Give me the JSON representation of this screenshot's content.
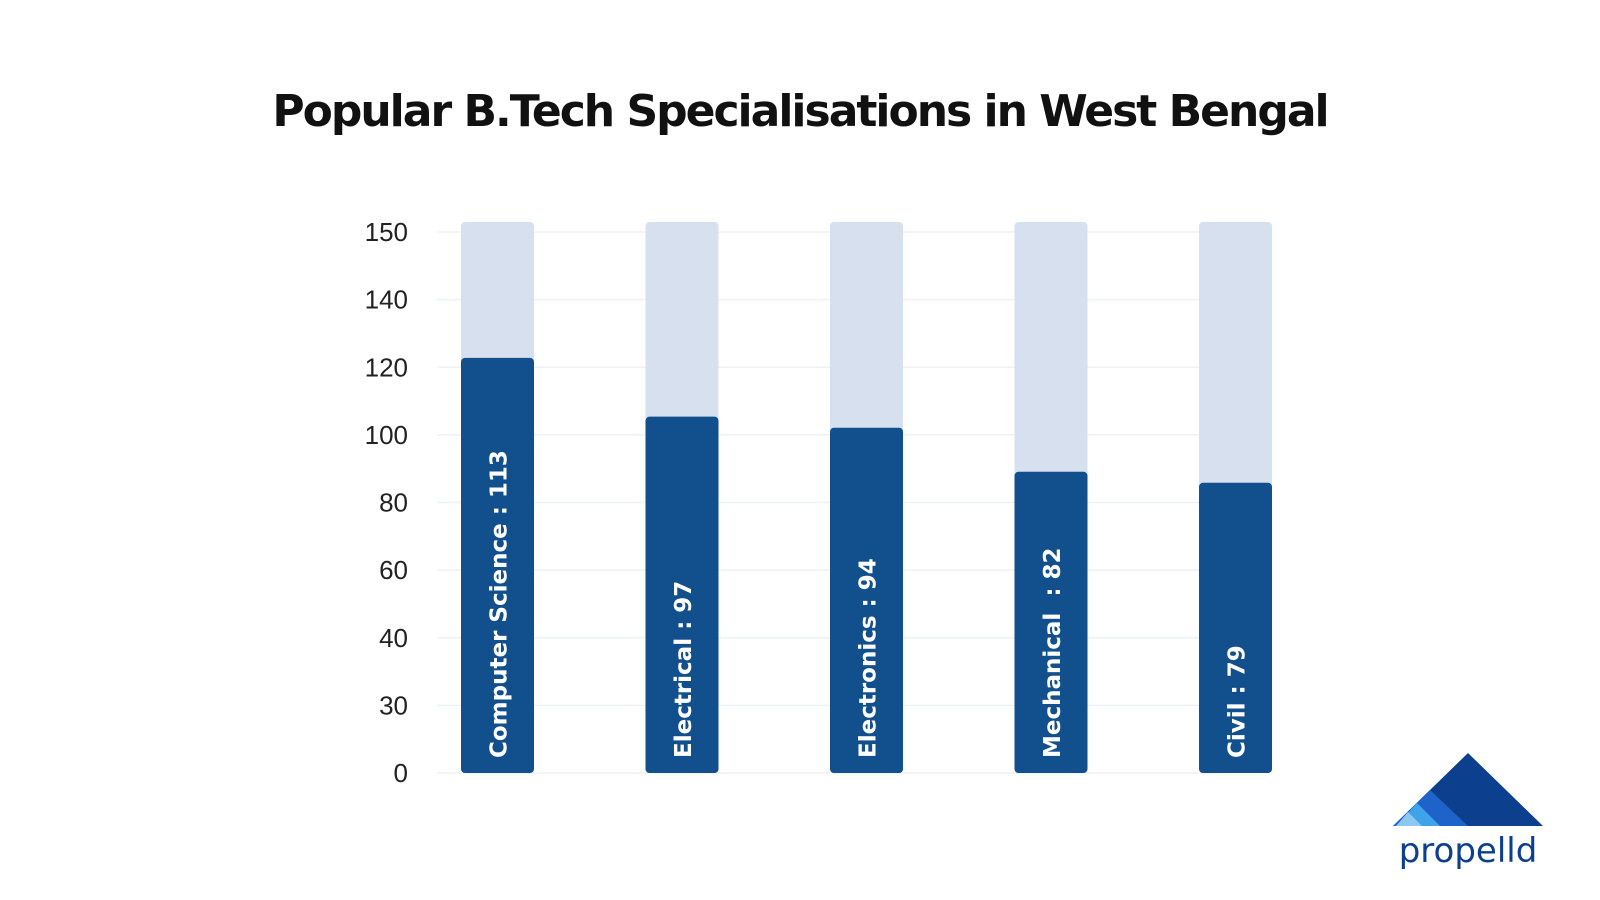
{
  "title": "Popular B.Tech Specialisations in West Bengal",
  "brand": {
    "name": "propelld",
    "colors": {
      "dark": "#0d3f8f",
      "mid": "#1e63c9",
      "light": "#3fa3ea",
      "pale": "#8cc8f2"
    }
  },
  "colors": {
    "bar": "#114f8d",
    "track": "#d7e0ee",
    "grid": "#eef1f5"
  },
  "chart_data": {
    "type": "bar",
    "categories": [
      "Computer Science",
      "Electrical",
      "Electronics",
      "Mechanical",
      "Civil"
    ],
    "values": [
      113,
      97,
      94,
      82,
      79
    ],
    "data_labels": [
      "Computer Science : 113",
      "Electrical : 97",
      "Electronics : 94",
      "Mechanical  : 82",
      "Civil : 79"
    ],
    "track_max": 150,
    "y_ticks": [
      "150",
      "140",
      "120",
      "100",
      "80",
      "60",
      "40",
      "30",
      "0"
    ],
    "title": "Popular B.Tech Specialisations in West Bengal",
    "xlabel": "",
    "ylabel": "",
    "grid": true,
    "legend": "none"
  }
}
